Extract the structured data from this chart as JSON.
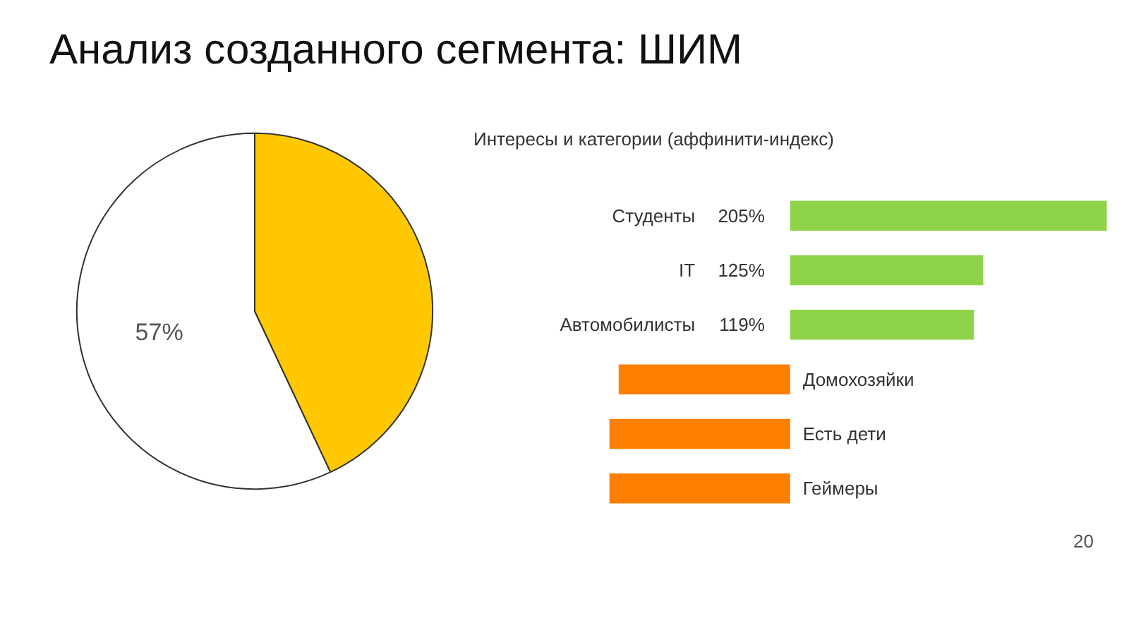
{
  "chart_data": [
    {
      "type": "pie",
      "title": "Анализ созданного сегмента: ШИМ",
      "categories": [
        null,
        null
      ],
      "values": [
        57,
        43
      ],
      "colors": [
        "#ffffff",
        "#ffc800"
      ],
      "value_labels": [
        "57%",
        null
      ]
    },
    {
      "type": "bar",
      "orientation": "horizontal",
      "title": "Интересы и категории (аффинити-индекс)",
      "categories": [
        "Студенты",
        "IT",
        "Автомобилисты",
        "Домохозяйки",
        "Есть дети",
        "Геймеры"
      ],
      "values": [
        205,
        125,
        119,
        -111,
        -117,
        -117
      ],
      "colors": [
        "#8ed34a",
        "#8ed34a",
        "#8ed34a",
        "#ff7f00",
        "#ff7f00",
        "#ff7f00"
      ],
      "value_labels": [
        "205%",
        "125%",
        "119%",
        null,
        null,
        null
      ],
      "annotations": [
        "20"
      ]
    }
  ]
}
